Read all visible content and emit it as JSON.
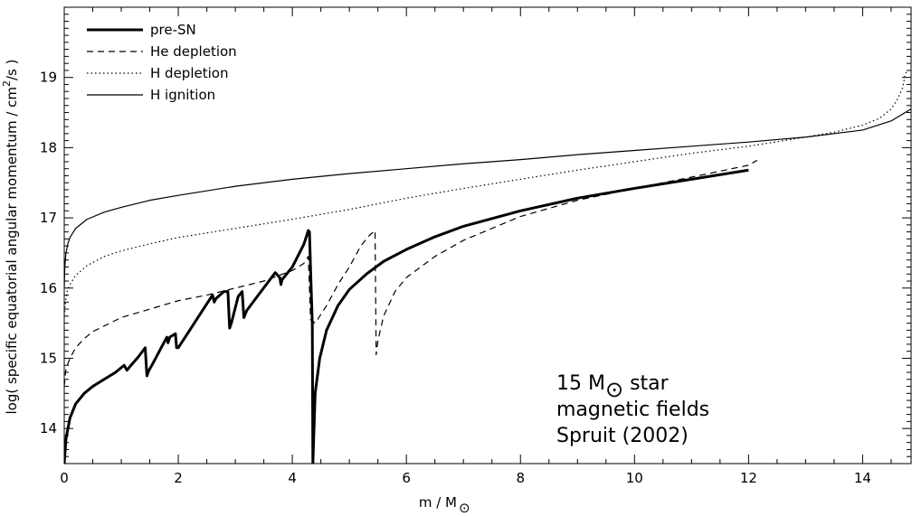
{
  "chart_data": {
    "type": "line",
    "xlabel": "m / M",
    "xlabel_sub": "⊙",
    "ylabel": "log( specific equatorial angular momentum / cm",
    "ylabel_sup": "2",
    "ylabel_tail": "/s )",
    "xlim": [
      0,
      14.85
    ],
    "ylim": [
      13.5,
      20.0
    ],
    "x_ticks": [
      0,
      2,
      4,
      6,
      8,
      10,
      12,
      14
    ],
    "x_tick_labels": [
      "0",
      "2",
      "4",
      "6",
      "8",
      "10",
      "12",
      "14"
    ],
    "y_ticks": [
      14,
      15,
      16,
      17,
      18,
      19
    ],
    "y_tick_labels": [
      "14",
      "15",
      "16",
      "17",
      "18",
      "19"
    ],
    "grid": false,
    "legend_position": "top-left",
    "annotation": {
      "line1_prefix": "15 M",
      "line1_symbol": "⊙",
      "line1_suffix": " star",
      "line2": "magnetic fields",
      "line3": "Spruit (2002)"
    },
    "series": [
      {
        "name": "pre-SN",
        "style": "solid-thick",
        "x": [
          0.0,
          0.03,
          0.1,
          0.2,
          0.35,
          0.5,
          0.7,
          0.9,
          1.05,
          1.1,
          1.15,
          1.3,
          1.42,
          1.45,
          1.48,
          1.55,
          1.7,
          1.8,
          1.82,
          1.85,
          1.95,
          1.97,
          2.0,
          2.2,
          2.4,
          2.6,
          2.63,
          2.66,
          2.8,
          2.87,
          2.9,
          2.93,
          3.05,
          3.12,
          3.15,
          3.2,
          3.45,
          3.7,
          3.78,
          3.8,
          3.82,
          4.0,
          4.2,
          4.28,
          4.3,
          4.33,
          4.35,
          4.36,
          4.4,
          4.48,
          4.6,
          4.8,
          5.0,
          5.3,
          5.6,
          6.0,
          6.5,
          7.0,
          8.0,
          9.0,
          10.0,
          11.0,
          12.0
        ],
        "y": [
          13.5,
          13.85,
          14.15,
          14.35,
          14.5,
          14.6,
          14.7,
          14.8,
          14.9,
          14.83,
          14.88,
          15.02,
          15.15,
          14.75,
          14.82,
          14.92,
          15.15,
          15.3,
          15.22,
          15.3,
          15.35,
          15.15,
          15.15,
          15.4,
          15.65,
          15.9,
          15.8,
          15.85,
          15.95,
          15.95,
          15.43,
          15.5,
          15.88,
          15.95,
          15.58,
          15.68,
          15.95,
          16.22,
          16.15,
          16.05,
          16.12,
          16.3,
          16.62,
          16.82,
          16.8,
          16.0,
          15.5,
          13.5,
          14.5,
          15.0,
          15.4,
          15.75,
          15.98,
          16.2,
          16.38,
          16.55,
          16.73,
          16.88,
          17.1,
          17.28,
          17.42,
          17.55,
          17.68
        ]
      },
      {
        "name": "He depletion",
        "style": "dashed",
        "x": [
          0.0,
          0.03,
          0.1,
          0.2,
          0.35,
          0.5,
          0.8,
          1.0,
          1.5,
          2.0,
          2.5,
          3.0,
          3.5,
          4.0,
          4.2,
          4.28,
          4.3,
          4.32,
          4.4,
          4.6,
          4.8,
          5.0,
          5.2,
          5.35,
          5.45,
          5.47,
          5.5,
          5.6,
          5.8,
          6.0,
          6.5,
          7.0,
          8.0,
          9.0,
          10.0,
          11.0,
          12.0,
          12.15
        ],
        "y": [
          14.6,
          14.85,
          15.0,
          15.15,
          15.28,
          15.38,
          15.5,
          15.58,
          15.7,
          15.82,
          15.9,
          16.0,
          16.1,
          16.25,
          16.35,
          16.45,
          16.0,
          15.55,
          15.5,
          15.75,
          16.05,
          16.3,
          16.6,
          16.75,
          16.82,
          15.05,
          15.25,
          15.6,
          15.95,
          16.15,
          16.45,
          16.68,
          17.02,
          17.25,
          17.42,
          17.58,
          17.75,
          17.82
        ]
      },
      {
        "name": "H depletion",
        "style": "dotted",
        "x": [
          0.0,
          0.02,
          0.05,
          0.1,
          0.2,
          0.4,
          0.7,
          1.0,
          1.5,
          2.0,
          3.0,
          4.0,
          5.0,
          6.0,
          7.0,
          8.0,
          9.0,
          10.0,
          11.0,
          12.0,
          13.0,
          13.5,
          14.0,
          14.3,
          14.5,
          14.62,
          14.7,
          14.75,
          14.78
        ],
        "y": [
          15.6,
          15.8,
          15.95,
          16.05,
          16.18,
          16.32,
          16.45,
          16.53,
          16.63,
          16.72,
          16.85,
          16.98,
          17.12,
          17.28,
          17.42,
          17.55,
          17.68,
          17.8,
          17.92,
          18.02,
          18.15,
          18.22,
          18.32,
          18.42,
          18.55,
          18.7,
          18.85,
          19.05,
          19.1
        ]
      },
      {
        "name": "H ignition",
        "style": "solid-thin",
        "x": [
          0.0,
          0.01,
          0.03,
          0.06,
          0.1,
          0.2,
          0.4,
          0.7,
          1.0,
          1.5,
          2.0,
          3.0,
          4.0,
          5.0,
          6.0,
          7.0,
          8.0,
          9.0,
          10.0,
          11.0,
          12.0,
          13.0,
          14.0,
          14.5,
          14.85
        ],
        "y": [
          16.0,
          16.3,
          16.5,
          16.62,
          16.72,
          16.85,
          16.98,
          17.08,
          17.15,
          17.25,
          17.32,
          17.45,
          17.55,
          17.63,
          17.7,
          17.77,
          17.83,
          17.9,
          17.96,
          18.02,
          18.08,
          18.15,
          18.25,
          18.38,
          18.55
        ]
      }
    ]
  }
}
